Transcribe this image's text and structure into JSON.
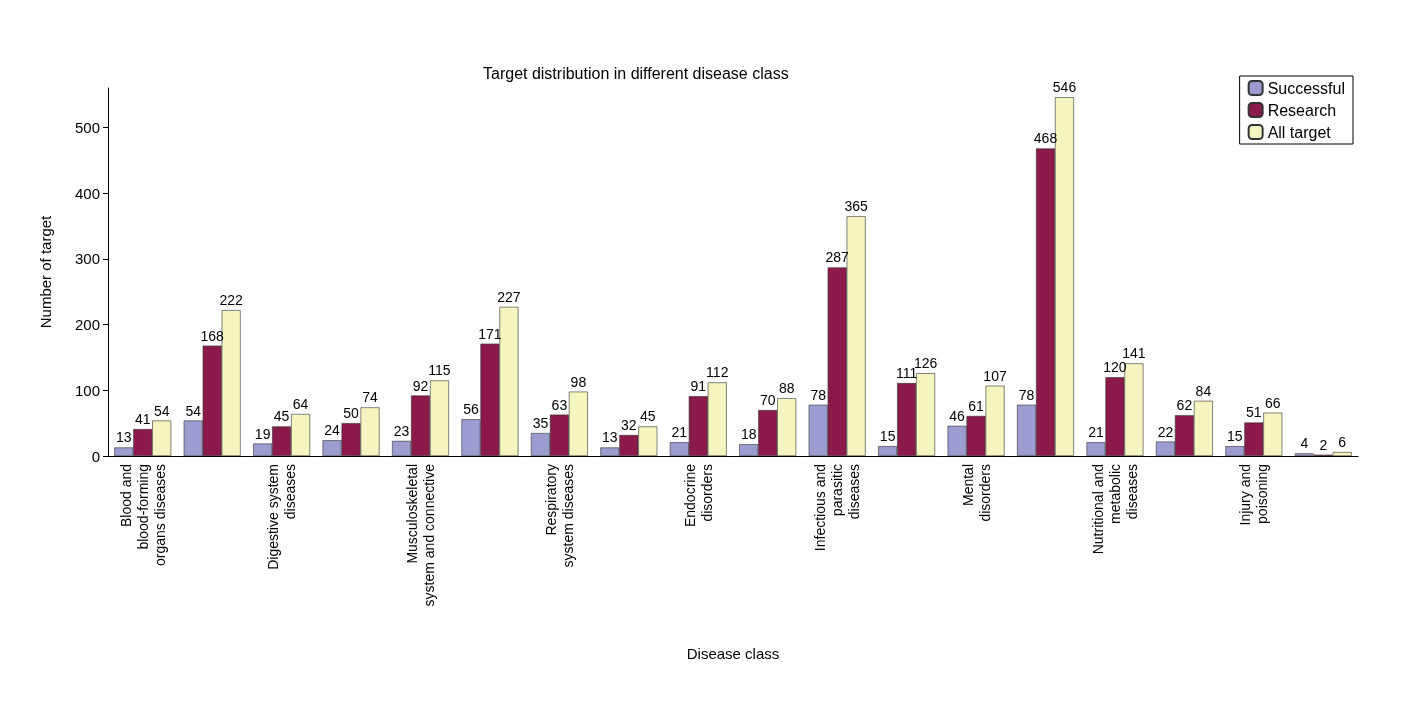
{
  "chart_data": {
    "type": "bar",
    "title": "Target distribution in different disease class",
    "xlabel": "Disease class",
    "ylabel": "Number of target",
    "categories": [
      "Blood and\nblood-forming\norgans diseases",
      null,
      "Digestive system\ndiseases",
      null,
      "Musculoskeletal\nsystem and connective",
      null,
      "Respiratory\nsystem diseases",
      null,
      "Endocrine\ndisorders",
      null,
      "Infectious and\nparasitic\ndiseases",
      null,
      "Mental\ndisorders",
      null,
      "Nutritional and\nmetabolic\ndiseases",
      null,
      "Injury and\npoisoning",
      null
    ],
    "series": [
      {
        "name": "Successful",
        "color": "#9c9cd0",
        "values": [
          13,
          54,
          19,
          24,
          23,
          56,
          35,
          13,
          21,
          18,
          78,
          15,
          46,
          78,
          21,
          22,
          15,
          4
        ]
      },
      {
        "name": "Research",
        "color": "#8b1a4a",
        "values": [
          41,
          168,
          45,
          50,
          92,
          171,
          63,
          32,
          91,
          70,
          287,
          111,
          61,
          468,
          120,
          62,
          51,
          2
        ]
      },
      {
        "name": "All target",
        "color": "#f5f5c0",
        "values": [
          54,
          222,
          64,
          74,
          115,
          227,
          98,
          45,
          112,
          88,
          365,
          126,
          107,
          546,
          141,
          84,
          66,
          6
        ]
      }
    ],
    "ylim": [
      0,
      560
    ],
    "yticks": [
      0,
      100,
      200,
      300,
      400,
      500
    ],
    "data_labels": true,
    "legend": "top right",
    "grid": false
  }
}
